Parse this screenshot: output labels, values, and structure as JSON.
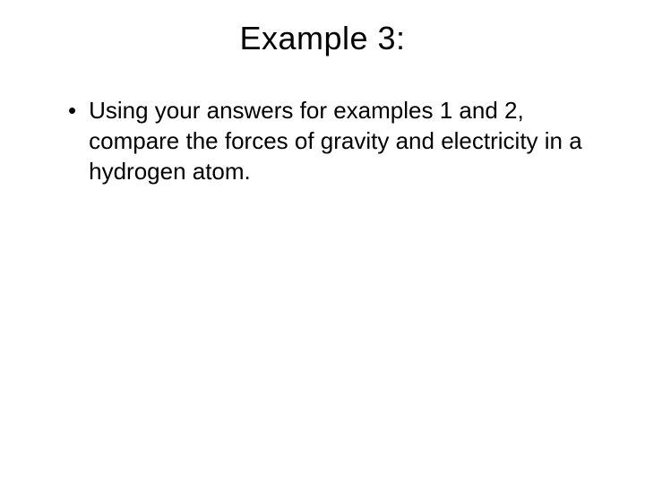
{
  "slide": {
    "title": "Example 3:",
    "bullets": [
      {
        "text": "Using your answers for examples 1 and 2, compare the forces of gravity and electricity in a hydrogen atom."
      }
    ]
  },
  "style": {
    "background_color": "#ffffff",
    "text_color": "#000000",
    "title_fontsize": 36,
    "body_fontsize": 26,
    "font_family": "Arial"
  }
}
